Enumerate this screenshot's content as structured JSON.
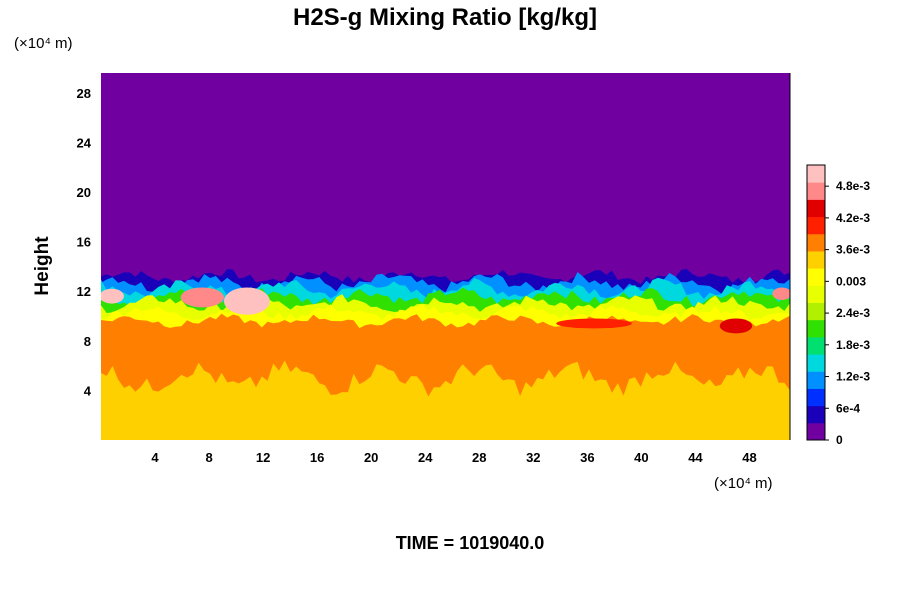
{
  "chart_data": {
    "type": "heatmap",
    "title": "H2S-g Mixing Ratio [kg/kg]",
    "ylabel": "Height",
    "x_unit": "(×10⁴ m)",
    "y_unit": "(×10⁴ m)",
    "xlim": [
      0,
      51
    ],
    "ylim": [
      0,
      29.6
    ],
    "x_ticks": [
      4,
      8,
      12,
      16,
      20,
      24,
      28,
      32,
      36,
      40,
      44,
      48
    ],
    "y_ticks": [
      4,
      8,
      12,
      16,
      20,
      24,
      28
    ],
    "time_label": "TIME = 1019040.0",
    "colorbar": {
      "min": 0,
      "max": 0.0052,
      "labels": [
        {
          "value": 0,
          "text": "0"
        },
        {
          "value": 0.0006,
          "text": "6e-4"
        },
        {
          "value": 0.0012,
          "text": "1.2e-3"
        },
        {
          "value": 0.0018,
          "text": "1.8e-3"
        },
        {
          "value": 0.0024,
          "text": "2.4e-3"
        },
        {
          "value": 0.003,
          "text": "0.003"
        },
        {
          "value": 0.0036,
          "text": "3.6e-3"
        },
        {
          "value": 0.0042,
          "text": "4.2e-3"
        },
        {
          "value": 0.0048,
          "text": "4.8e-3"
        }
      ],
      "colors": [
        "#7000a0",
        "#1a00b8",
        "#0030ff",
        "#0090ff",
        "#00d8e0",
        "#00e070",
        "#30e000",
        "#b0f000",
        "#e8ff00",
        "#ffff00",
        "#ffd000",
        "#ff8000",
        "#ff2000",
        "#e00000",
        "#ff8888",
        "#ffc0c0"
      ]
    },
    "field_profile": [
      {
        "height": 0,
        "value": 0.0034
      },
      {
        "height": 5,
        "value": 0.0035
      },
      {
        "height": 8,
        "value": 0.0037
      },
      {
        "height": 10,
        "value": 0.0038
      },
      {
        "height": 11,
        "value": 0.0027
      },
      {
        "height": 12,
        "value": 0.0016
      },
      {
        "height": 13,
        "value": 0.0004
      },
      {
        "height": 13.5,
        "value": 0
      },
      {
        "height": 29.6,
        "value": 0
      }
    ]
  }
}
